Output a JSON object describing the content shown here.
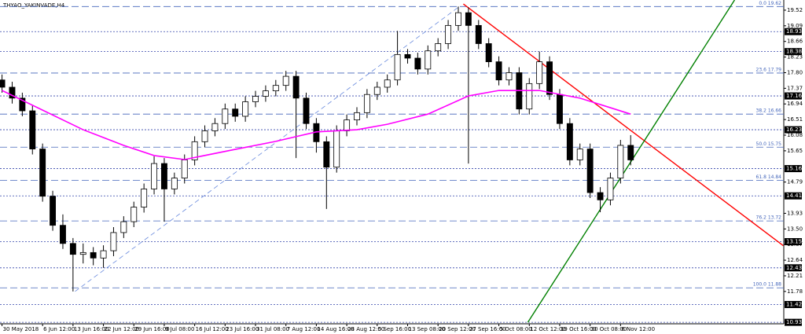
{
  "chart_data": {
    "type": "candlestick",
    "title": "THYAO_YAKINVADE,H4",
    "bull_color": "#ffffff",
    "bear_color": "#000000",
    "candles": [
      [
        17.6,
        17.75,
        17.25,
        17.4
      ],
      [
        17.4,
        17.55,
        16.95,
        17.1
      ],
      [
        17.1,
        17.25,
        16.6,
        16.75
      ],
      [
        16.75,
        16.9,
        15.55,
        15.7
      ],
      [
        15.7,
        15.85,
        14.25,
        14.4
      ],
      [
        14.4,
        14.55,
        13.45,
        13.6
      ],
      [
        13.6,
        13.9,
        12.95,
        13.1
      ],
      [
        13.1,
        13.25,
        11.78,
        12.8
      ],
      [
        12.8,
        13.1,
        12.55,
        12.85
      ],
      [
        12.85,
        13.0,
        12.5,
        12.7
      ],
      [
        12.7,
        13.05,
        12.43,
        12.9
      ],
      [
        12.9,
        13.55,
        12.75,
        13.4
      ],
      [
        13.4,
        13.85,
        13.25,
        13.7
      ],
      [
        13.7,
        14.25,
        13.55,
        14.1
      ],
      [
        14.1,
        14.75,
        13.95,
        14.6
      ],
      [
        14.6,
        15.5,
        14.45,
        15.3
      ],
      [
        15.3,
        15.45,
        13.7,
        14.6
      ],
      [
        14.6,
        15.05,
        14.45,
        14.9
      ],
      [
        14.9,
        15.55,
        14.75,
        15.4
      ],
      [
        15.4,
        16.05,
        15.25,
        15.9
      ],
      [
        15.9,
        16.35,
        15.75,
        16.2
      ],
      [
        16.2,
        16.55,
        16.05,
        16.4
      ],
      [
        16.4,
        16.95,
        16.25,
        16.8
      ],
      [
        16.8,
        16.95,
        16.45,
        16.6
      ],
      [
        16.6,
        17.15,
        16.45,
        17.0
      ],
      [
        17.0,
        17.3,
        16.85,
        17.15
      ],
      [
        17.15,
        17.45,
        17.0,
        17.3
      ],
      [
        17.3,
        17.6,
        17.15,
        17.45
      ],
      [
        17.45,
        17.85,
        17.3,
        17.7
      ],
      [
        17.7,
        17.85,
        15.45,
        17.1
      ],
      [
        17.1,
        17.25,
        16.25,
        16.4
      ],
      [
        16.4,
        16.55,
        15.6,
        15.9
      ],
      [
        15.9,
        16.05,
        14.05,
        15.2
      ],
      [
        15.2,
        16.35,
        15.05,
        16.2
      ],
      [
        16.2,
        16.65,
        16.05,
        16.5
      ],
      [
        16.5,
        16.85,
        16.35,
        16.7
      ],
      [
        16.7,
        17.35,
        16.55,
        17.2
      ],
      [
        17.2,
        17.55,
        17.05,
        17.4
      ],
      [
        17.4,
        17.75,
        17.25,
        17.6
      ],
      [
        17.6,
        18.95,
        17.45,
        18.3
      ],
      [
        18.3,
        18.45,
        18.05,
        18.2
      ],
      [
        18.2,
        18.35,
        17.75,
        17.9
      ],
      [
        17.9,
        18.55,
        17.75,
        18.4
      ],
      [
        18.4,
        18.75,
        18.25,
        18.6
      ],
      [
        18.6,
        19.25,
        18.45,
        19.1
      ],
      [
        19.1,
        19.62,
        18.95,
        19.45
      ],
      [
        19.45,
        19.6,
        15.3,
        19.1
      ],
      [
        19.1,
        19.25,
        18.45,
        18.6
      ],
      [
        18.6,
        18.75,
        17.95,
        18.1
      ],
      [
        18.1,
        18.25,
        17.45,
        17.6
      ],
      [
        17.6,
        17.95,
        17.45,
        17.8
      ],
      [
        17.8,
        17.95,
        16.65,
        16.8
      ],
      [
        16.8,
        17.65,
        16.65,
        17.5
      ],
      [
        17.5,
        18.38,
        17.35,
        18.1
      ],
      [
        18.1,
        18.25,
        17.05,
        17.2
      ],
      [
        17.2,
        17.35,
        16.25,
        16.4
      ],
      [
        16.4,
        16.55,
        15.25,
        15.4
      ],
      [
        15.4,
        15.85,
        15.25,
        15.7
      ],
      [
        15.7,
        15.85,
        14.35,
        14.5
      ],
      [
        14.5,
        14.65,
        13.96,
        14.3
      ],
      [
        14.3,
        15.05,
        14.15,
        14.9
      ],
      [
        14.9,
        15.95,
        14.75,
        15.8
      ],
      [
        15.8,
        16.08,
        15.25,
        15.4
      ]
    ],
    "moving_average": {
      "color": "#ff00ff",
      "x": [
        0,
        4,
        8,
        12,
        15,
        18,
        23,
        27,
        31,
        35,
        38,
        42,
        46,
        49,
        53,
        57,
        62
      ],
      "values": [
        17.31,
        16.77,
        16.23,
        15.8,
        15.52,
        15.41,
        15.69,
        15.91,
        16.17,
        16.23,
        16.38,
        16.66,
        17.16,
        17.31,
        17.31,
        17.1,
        16.66
      ]
    },
    "trendlines": [
      {
        "color": "#ff0000",
        "x": [
          45.5,
          77.05
        ],
        "y": [
          19.69,
          13.04
        ]
      },
      {
        "color": "#008000",
        "x": [
          51.86,
          72.25
        ],
        "y": [
          10.93,
          19.8
        ]
      },
      {
        "color": "#6688dd",
        "x": [
          7.2,
          45.1
        ],
        "y": [
          11.78,
          19.62
        ]
      }
    ],
    "levels": [
      18.93,
      18.38,
      17.16,
      16.23,
      15.16,
      14.41,
      13.15,
      12.43,
      11.42,
      10.93
    ],
    "fib_levels": [
      {
        "value": 19.62,
        "label": "0.0 19.62"
      },
      {
        "value": 17.79,
        "label": "23.6 17.79"
      },
      {
        "value": 16.66,
        "label": "38.2 16.66"
      },
      {
        "value": 15.75,
        "label": "50.0 15.75"
      },
      {
        "value": 14.84,
        "label": "61.8 14.84"
      },
      {
        "value": 13.72,
        "label": "76.2 13.72"
      },
      {
        "value": 11.88,
        "label": "100.0 11.88"
      }
    ],
    "xlim": [
      -0.2,
      77.1
    ],
    "ylim": [
      10.89,
      19.8
    ],
    "yticks": [
      19.52,
      19.09,
      18.66,
      18.23,
      {
        "value": 17.8,
        "label": "17.80"
      },
      17.37,
      16.94,
      16.51,
      16.08,
      15.65,
      14.79,
      13.93,
      {
        "value": 13.5,
        "label": "13.50"
      },
      13.07,
      12.64,
      12.21,
      11.78
    ],
    "xticks": [
      {
        "value": 0,
        "label": "30 May 2018"
      },
      {
        "value": 4,
        "label": "6 Jun 12:00"
      },
      {
        "value": 7,
        "label": "13 Jun 16:00"
      },
      {
        "value": 10,
        "label": "22 Jun 12:00"
      },
      {
        "value": 13,
        "label": "29 Jun 16:00"
      },
      {
        "value": 16,
        "label": "9 Jul 08:00"
      },
      {
        "value": 19,
        "label": "16 Jul 12:00"
      },
      {
        "value": 22,
        "label": "23 Jul 16:00"
      },
      {
        "value": 25,
        "label": "31 Jul 08:00"
      },
      {
        "value": 28,
        "label": "7 Aug 12:00"
      },
      {
        "value": 31,
        "label": "14 Aug 16:00"
      },
      {
        "value": 34,
        "label": "28 Aug 12:00"
      },
      {
        "value": 37,
        "label": "5 Sep 16:00"
      },
      {
        "value": 40,
        "label": "13 Sep 08:00"
      },
      {
        "value": 43,
        "label": "20 Sep 12:00"
      },
      {
        "value": 46,
        "label": "27 Sep 16:00"
      },
      {
        "value": 49,
        "label": "5 Oct 08:00"
      },
      {
        "value": 52,
        "label": "12 Oct 12:00"
      },
      {
        "value": 55,
        "label": "19 Oct 16:00"
      },
      {
        "value": 58,
        "label": "30 Oct 08:00"
      },
      {
        "value": 61,
        "label": "6 Nov 12:00"
      }
    ]
  }
}
